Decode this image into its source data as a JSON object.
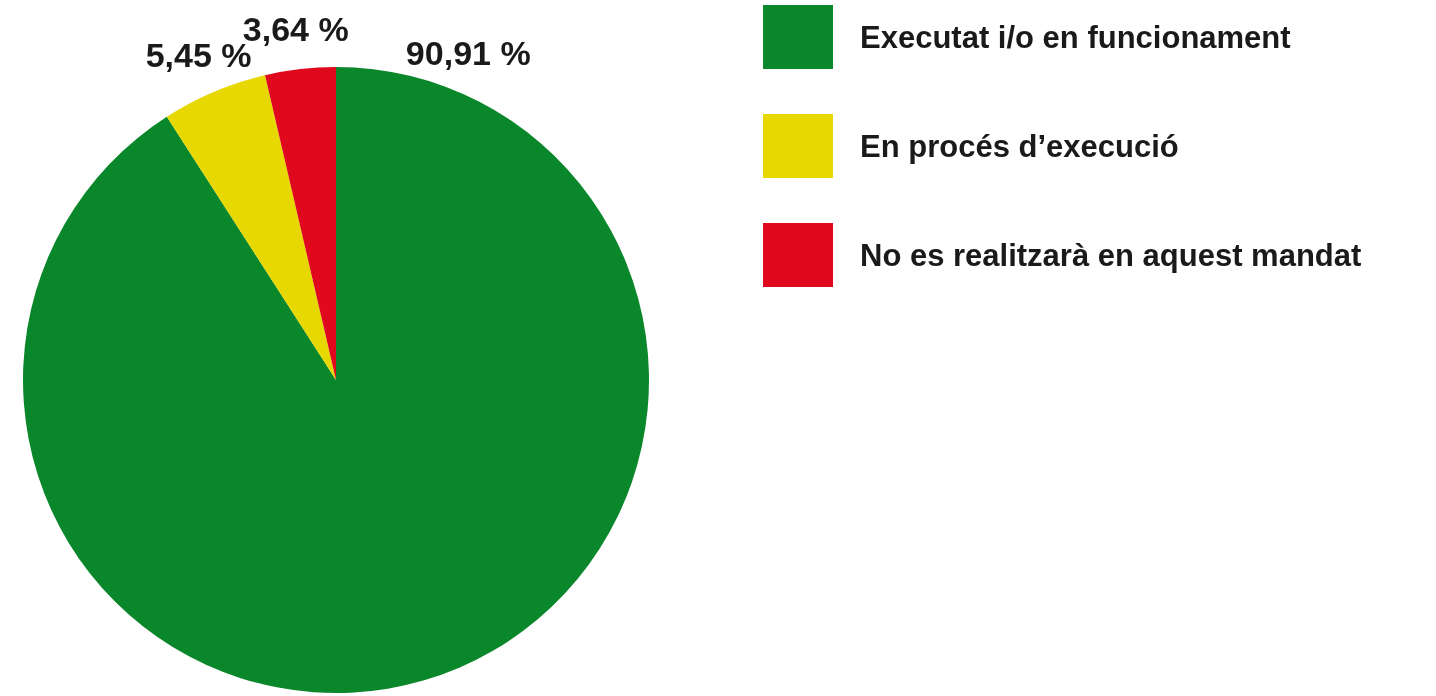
{
  "chart_data": {
    "type": "pie",
    "categories": [
      "Executat i/o en funcionament",
      "En procés d’execució",
      "No es realitzarà en aquest mandat"
    ],
    "values": [
      90.91,
      5.45,
      3.64
    ],
    "colors": [
      "#0a862b",
      "#e6d800",
      "#e0081c"
    ],
    "value_labels": [
      "90,91 %",
      "5,45 %",
      "3,64 %"
    ],
    "legend": "top right"
  }
}
